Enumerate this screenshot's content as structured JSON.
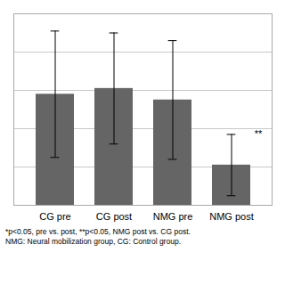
{
  "chart_data": {
    "type": "bar",
    "categories": [
      "CG pre",
      "CG post",
      "NMG pre",
      "NMG post"
    ],
    "values": [
      5.8,
      6.1,
      5.5,
      2.1
    ],
    "errors": [
      3.3,
      2.9,
      3.1,
      1.6
    ],
    "color": "#656565",
    "ylim": [
      0,
      10
    ],
    "yticks": [
      0,
      2,
      4,
      6,
      8,
      10
    ],
    "grid": true,
    "tick_labels": "x",
    "annotations": [
      {
        "text": "**",
        "category": "NMG post"
      }
    ],
    "footnotes": [
      "*p<0.05, pre vs. post, **p<0.05, NMG post vs. CG post.",
      "NMG: Neural mobilization group, CG: Control group."
    ]
  }
}
